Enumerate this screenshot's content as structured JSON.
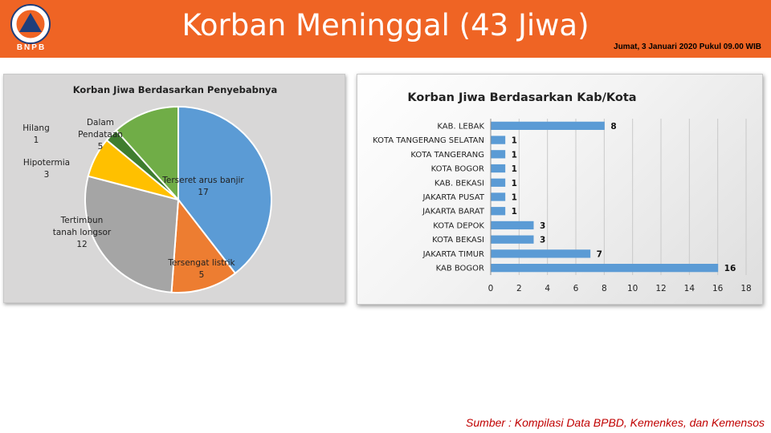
{
  "header": {
    "logo_text": "BNPB",
    "title": "Korban Meninggal (43 Jiwa)",
    "datetime": "Jumat, 3 Januari 2020 Pukul 09.00 WIB"
  },
  "colors": {
    "header_bg": "#ef6424",
    "source_text": "#c00000",
    "bar": "#5b9bd5"
  },
  "chart_data": [
    {
      "type": "pie",
      "title": "Korban Jiwa Berdasarkan Penyebabnya",
      "slices": [
        {
          "label": [
            "Terseret arus banjir"
          ],
          "value": 17,
          "color": "#5b9bd5"
        },
        {
          "label": [
            "Tersengat listrik"
          ],
          "value": 5,
          "color": "#ed7d31"
        },
        {
          "label": [
            "Tertimbun",
            "tanah longsor"
          ],
          "value": 12,
          "color": "#a5a5a5"
        },
        {
          "label": [
            "Hipotermia"
          ],
          "value": 3,
          "color": "#ffc000"
        },
        {
          "label": [
            "Hilang"
          ],
          "value": 1,
          "color": "#3f7d2f"
        },
        {
          "label": [
            "Dalam",
            "Pendataan"
          ],
          "value": 5,
          "color": "#70ad47"
        }
      ]
    },
    {
      "type": "bar",
      "orientation": "horizontal",
      "title": "Korban Jiwa Berdasarkan Kab/Kota",
      "categories": [
        "KAB. LEBAK",
        "KOTA TANGERANG SELATAN",
        "KOTA TANGERANG",
        "KOTA BOGOR",
        "KAB. BEKASI",
        "JAKARTA PUSAT",
        "JAKARTA BARAT",
        "KOTA DEPOK",
        "KOTA BEKASI",
        "JAKARTA TIMUR",
        "KAB BOGOR"
      ],
      "values": [
        8,
        1,
        1,
        1,
        1,
        1,
        1,
        3,
        3,
        7,
        16
      ],
      "xlim": [
        0,
        18
      ],
      "xticks": [
        0,
        2,
        4,
        6,
        8,
        10,
        12,
        14,
        16,
        18
      ],
      "grid": true,
      "data_labels": true
    }
  ],
  "footer": {
    "source": "Sumber : Kompilasi Data BPBD, Kemenkes, dan Kemensos"
  }
}
